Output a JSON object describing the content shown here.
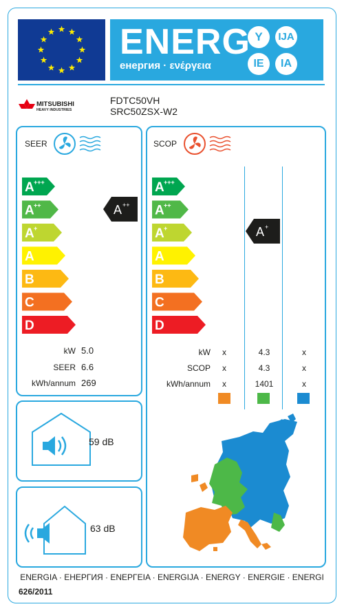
{
  "header": {
    "energy_word": "ENERG",
    "energy_subtitle": "енергия · ενέργεια",
    "language_suffixes": [
      "Y",
      "IJA",
      "IE",
      "IA"
    ]
  },
  "supplier": {
    "logo_text_line1": "MITSUBISHI",
    "logo_text_line2": "HEAVY INDUSTRIES",
    "indoor_model": "FDTC50VH",
    "outdoor_model": "SRC50ZSX-W2"
  },
  "cooling": {
    "title": "SEER",
    "classes": [
      "A+++",
      "A++",
      "A+",
      "A",
      "B",
      "C",
      "D"
    ],
    "class_colors": [
      "#00a650",
      "#50b848",
      "#bed630",
      "#fff200",
      "#fdb913",
      "#f37021",
      "#ed1c24"
    ],
    "rating": "A++",
    "rating_index": 1,
    "specs": [
      {
        "label": "kW",
        "value": "5.0"
      },
      {
        "label": "SEER",
        "value": "6.6"
      },
      {
        "label": "kWh/annum",
        "value": "269"
      }
    ]
  },
  "heating": {
    "title": "SCOP",
    "classes": [
      "A+++",
      "A++",
      "A+",
      "A",
      "B",
      "C",
      "D"
    ],
    "rating": "A+",
    "rating_index": 2,
    "specs": [
      {
        "label": "kW",
        "warmer": "x",
        "average": "4.3",
        "colder": "x"
      },
      {
        "label": "SCOP",
        "warmer": "x",
        "average": "4.3",
        "colder": "x"
      },
      {
        "label": "kWh/annum",
        "warmer": "x",
        "average": "1401",
        "colder": "x"
      }
    ],
    "climate_colors": [
      "#f08a24",
      "#4db848",
      "#1b8bd1"
    ]
  },
  "noise": {
    "indoor_value": "59",
    "outdoor_value": "63",
    "unit": "dB"
  },
  "footer": {
    "energy_names": "ENERGIA · ЕНЕРГИЯ · ΕΝΕΡΓΕΙΑ · ENERGIJA · ENERGY · ENERGIE · ENERGI",
    "regulation": "626/2011"
  },
  "icons": {
    "eu_flag": "eu-flag-icon",
    "cooling_fan": "snowflake-fan-icon",
    "heating_fan": "heat-fan-icon",
    "indoor_sound": "indoor-speaker-icon",
    "outdoor_sound": "outdoor-speaker-icon",
    "climate_map": "europe-climate-map"
  }
}
